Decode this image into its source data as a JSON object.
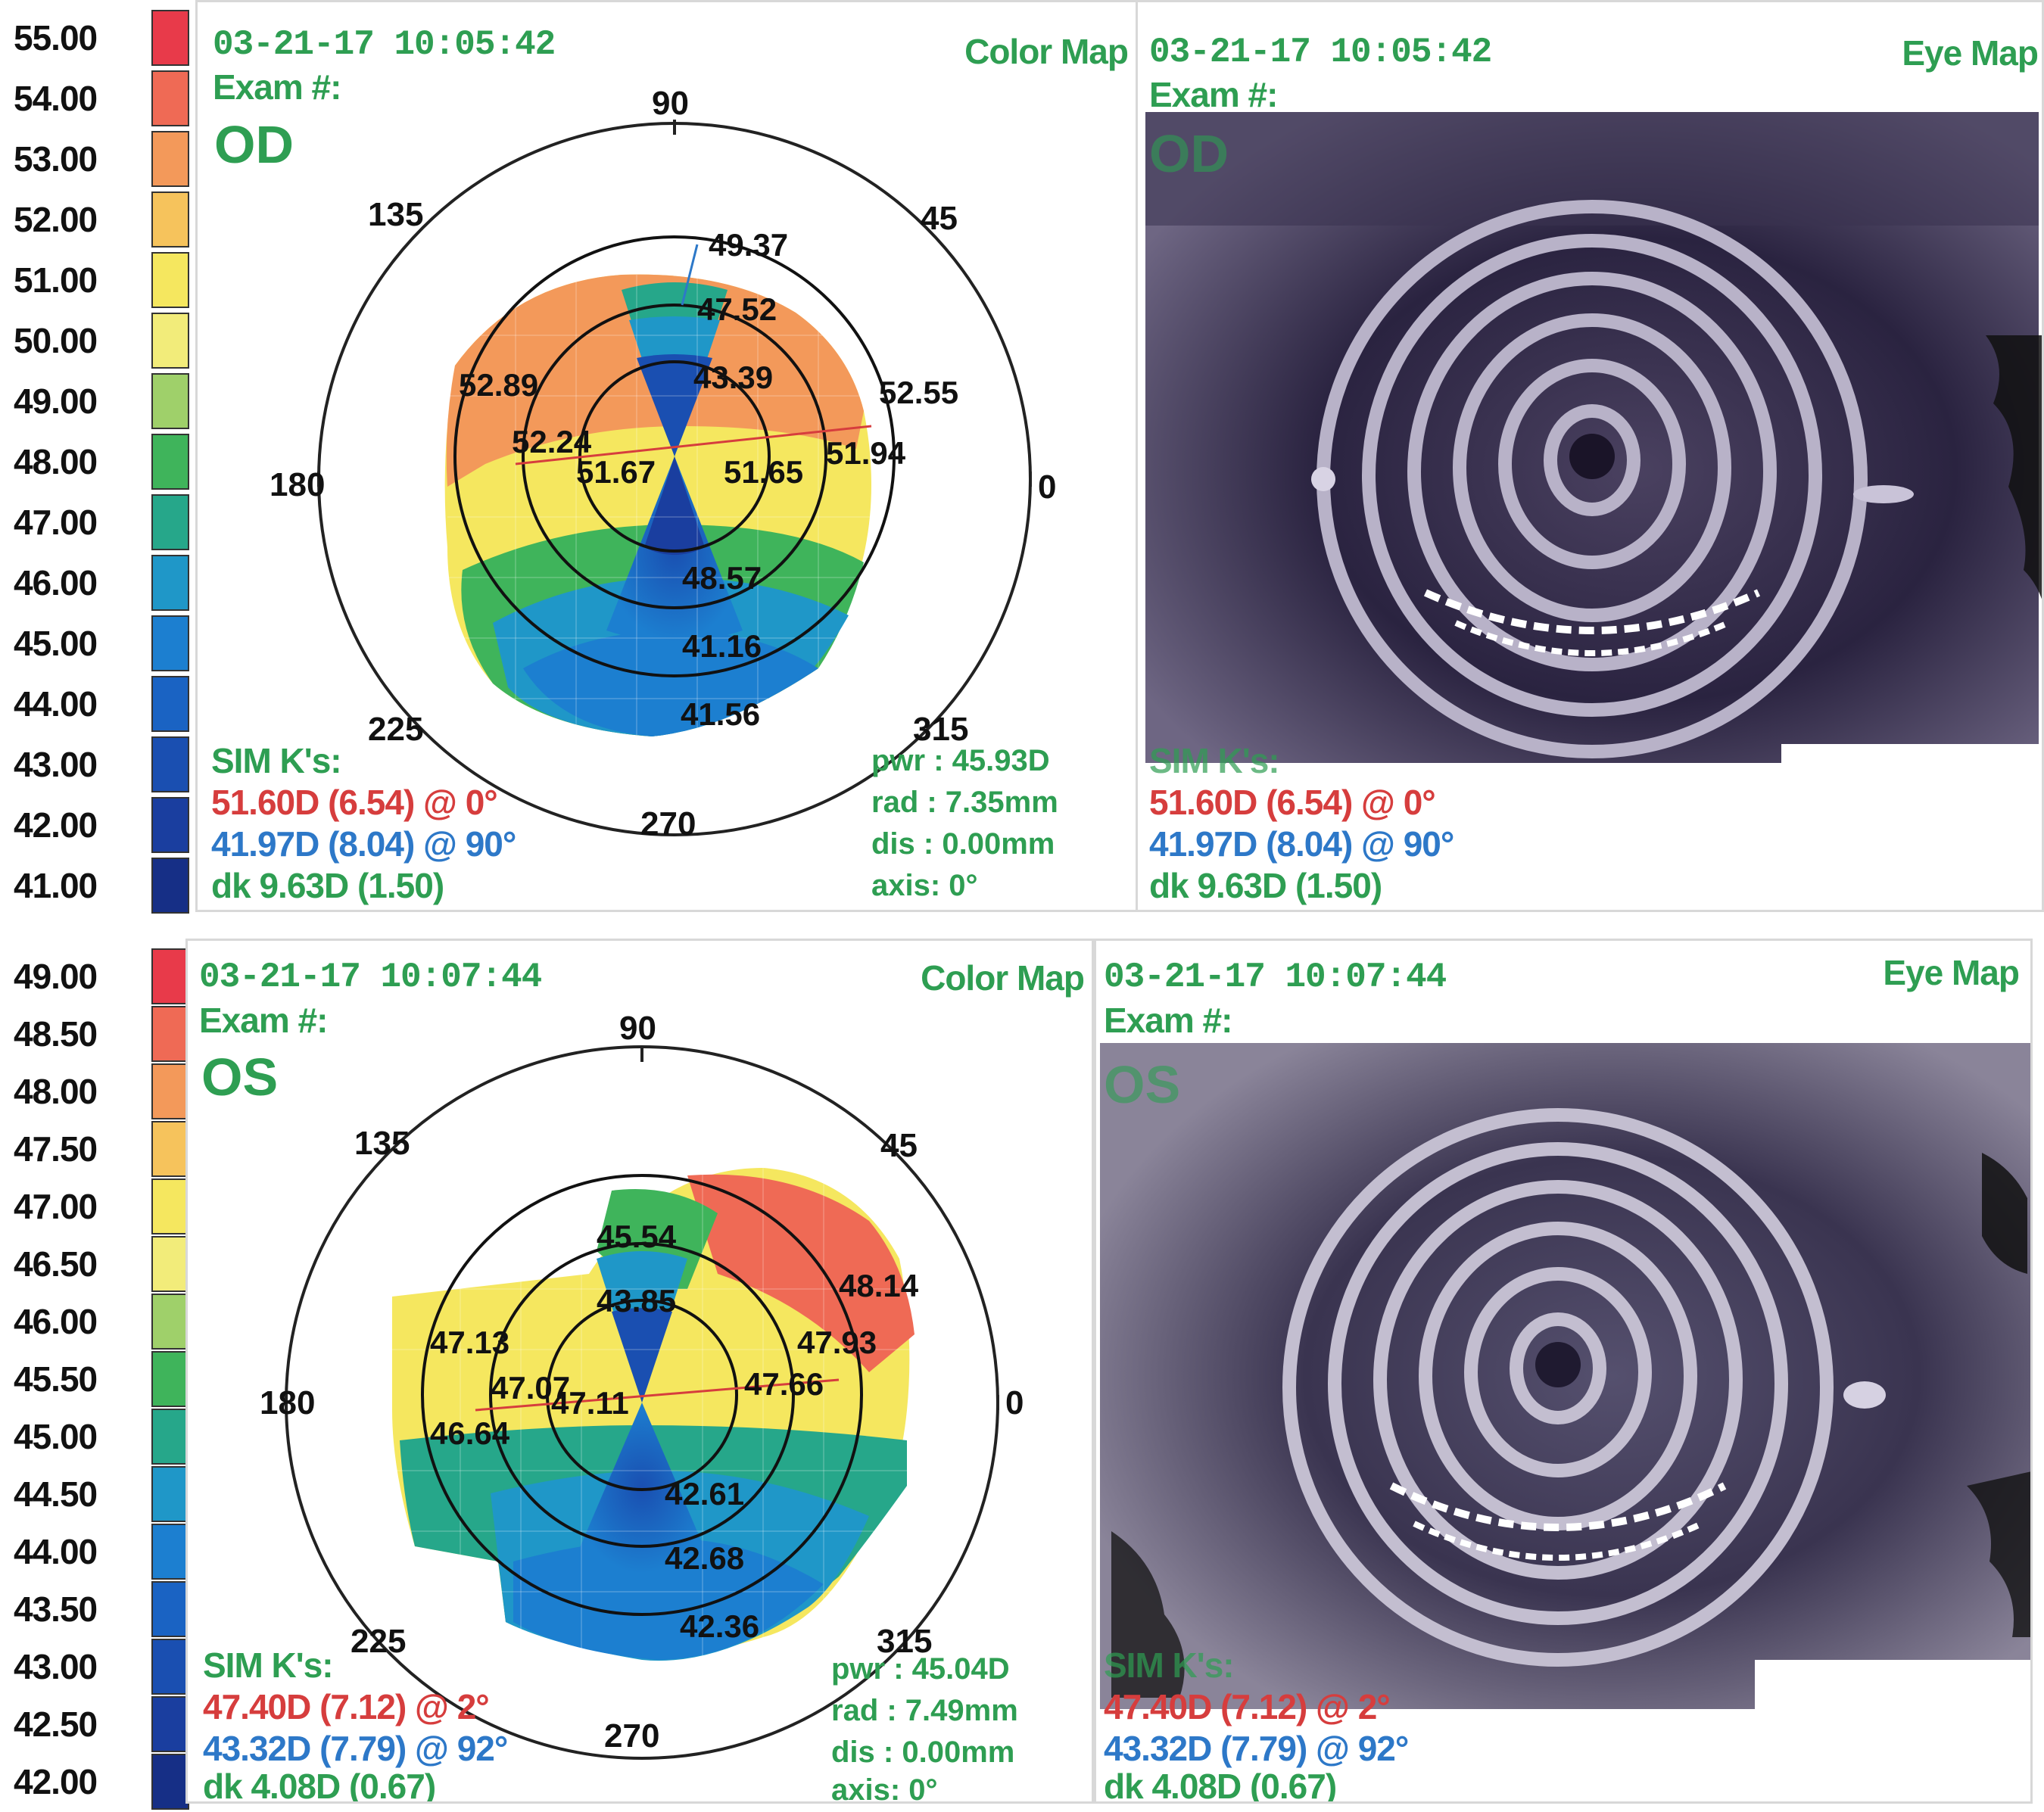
{
  "panels": [
    {
      "eye": "OD",
      "timestamp": "03-21-17 10:05:42",
      "exam_label": "Exam #:",
      "color_map_label": "Color Map",
      "eye_map_label": "Eye Map",
      "scale": [
        "55.00",
        "54.00",
        "53.00",
        "52.00",
        "51.00",
        "50.00",
        "49.00",
        "48.00",
        "47.00",
        "46.00",
        "45.00",
        "44.00",
        "43.00",
        "42.00",
        "41.00"
      ],
      "scale_colors": [
        "#e83a4a",
        "#ef6a55",
        "#f3995a",
        "#f6c35c",
        "#f5e75f",
        "#f2ec7a",
        "#9fd06a",
        "#3fb45b",
        "#26a78a",
        "#1f97c8",
        "#1c7fd0",
        "#1a63c3",
        "#1a4fb1",
        "#1a3e9f",
        "#162f86"
      ],
      "axis_labels": {
        "a90": "90",
        "a45": "45",
        "a135": "135",
        "a180": "180",
        "a0": "0",
        "a225": "225",
        "a270": "270",
        "a315": "315"
      },
      "map_values": [
        "49.37",
        "47.52",
        "43.39",
        "52.89",
        "52.55",
        "52.24",
        "51.94",
        "51.67",
        "51.65",
        "48.57",
        "41.16",
        "41.56"
      ],
      "sim_label": "SIM K's:",
      "k1": "51.60D (6.54) @  0°",
      "k2": "41.97D (8.04) @  90°",
      "dk": "dk  9.63D (1.50)",
      "pwr": "pwr : 45.93D",
      "rad": "rad : 7.35mm",
      "dis": "dis : 0.00mm",
      "axis": "axis:  0°"
    },
    {
      "eye": "OS",
      "timestamp": "03-21-17 10:07:44",
      "exam_label": "Exam #:",
      "color_map_label": "Color Map",
      "eye_map_label": "Eye Map",
      "scale": [
        "49.00",
        "48.50",
        "48.00",
        "47.50",
        "47.00",
        "46.50",
        "46.00",
        "45.50",
        "45.00",
        "44.50",
        "44.00",
        "43.50",
        "43.00",
        "42.50",
        "42.00"
      ],
      "scale_colors": [
        "#e83a4a",
        "#ef6a55",
        "#f3995a",
        "#f6c35c",
        "#f5e75f",
        "#f2ec7a",
        "#9fd06a",
        "#3fb45b",
        "#26a78a",
        "#1f97c8",
        "#1c7fd0",
        "#1a63c3",
        "#1a4fb1",
        "#1a3e9f",
        "#162f86"
      ],
      "axis_labels": {
        "a90": "90",
        "a45": "45",
        "a135": "135",
        "a180": "180",
        "a0": "0",
        "a225": "225",
        "a270": "270",
        "a315": "315"
      },
      "map_values": [
        "45.54",
        "43.85",
        "48.14",
        "47.13",
        "47.93",
        "47.07",
        "47.11",
        "47.66",
        "46.64",
        "42.61",
        "42.68",
        "42.36"
      ],
      "sim_label": "SIM K's:",
      "k1": "47.40D (7.12) @  2°",
      "k2": "43.32D (7.79) @  92°",
      "dk": "dk  4.08D (0.67)",
      "pwr": "pwr : 45.04D",
      "rad": "rad : 7.49mm",
      "dis": "dis : 0.00mm",
      "axis": "axis:  0°"
    }
  ]
}
